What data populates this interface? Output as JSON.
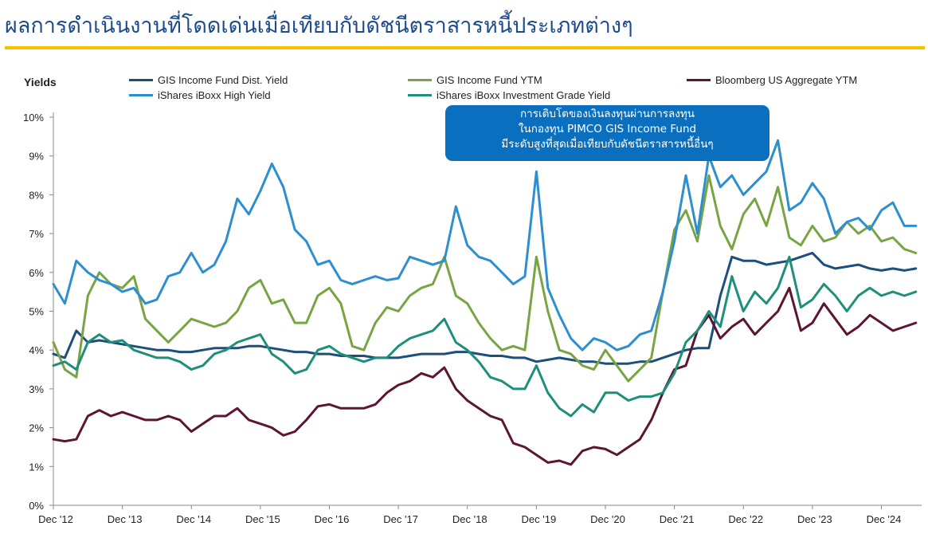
{
  "page": {
    "title": "ผลการดำเนินงานที่โดดเด่นเมื่อเทียบกับดัชนีตราสารหนี้ประเภทต่างๆ",
    "accent_color": "#f3c300",
    "title_color": "#1d4c8c"
  },
  "callout": {
    "lines": [
      "การเติบโตของเงินลงทุนผ่านการลงทุน",
      "ในกองทุน PIMCO GIS Income Fund",
      "มีระดับสูงที่สุดเมื่อเทียบกับดัชนีตราสารหนี้อื่นๆ"
    ],
    "color": "#0a6fbe"
  },
  "chart_data": {
    "type": "line",
    "ylabel": "Yields",
    "xlabel": "",
    "ylim": [
      0,
      10
    ],
    "y_ticks": [
      "0%",
      "1%",
      "2%",
      "3%",
      "4%",
      "5%",
      "6%",
      "7%",
      "8%",
      "9%",
      "10%"
    ],
    "x_ticks": [
      "Dec '12",
      "Dec '13",
      "Dec '14",
      "Dec '15",
      "Dec '16",
      "Dec '17",
      "Dec '18",
      "Dec '19",
      "Dec '20",
      "Dec '21",
      "Dec '22",
      "Dec '23",
      "Dec '24"
    ],
    "x_range": [
      2012.917,
      2025.5
    ],
    "grid": false,
    "legend_position": "top",
    "x": [
      2012.917,
      2013.083,
      2013.25,
      2013.417,
      2013.583,
      2013.75,
      2013.917,
      2014.083,
      2014.25,
      2014.417,
      2014.583,
      2014.75,
      2014.917,
      2015.083,
      2015.25,
      2015.417,
      2015.583,
      2015.75,
      2015.917,
      2016.083,
      2016.25,
      2016.417,
      2016.583,
      2016.75,
      2016.917,
      2017.083,
      2017.25,
      2017.417,
      2017.583,
      2017.75,
      2017.917,
      2018.083,
      2018.25,
      2018.417,
      2018.583,
      2018.75,
      2018.917,
      2019.083,
      2019.25,
      2019.417,
      2019.583,
      2019.75,
      2019.917,
      2020.083,
      2020.25,
      2020.417,
      2020.583,
      2020.75,
      2020.917,
      2021.083,
      2021.25,
      2021.417,
      2021.583,
      2021.75,
      2021.917,
      2022.083,
      2022.25,
      2022.417,
      2022.583,
      2022.75,
      2022.917,
      2023.083,
      2023.25,
      2023.417,
      2023.583,
      2023.75,
      2023.917,
      2024.083,
      2024.25,
      2024.417,
      2024.583,
      2024.75,
      2024.917,
      2025.083,
      2025.25,
      2025.417
    ],
    "series": [
      {
        "name": "GIS Income Fund Dist. Yield",
        "color": "#1d4f7c",
        "values": [
          3.9,
          3.8,
          4.5,
          4.2,
          4.25,
          4.2,
          4.15,
          4.1,
          4.05,
          4.0,
          4.0,
          3.95,
          3.95,
          4.0,
          4.05,
          4.05,
          4.05,
          4.1,
          4.1,
          4.05,
          4.0,
          3.95,
          3.95,
          3.9,
          3.9,
          3.85,
          3.85,
          3.85,
          3.8,
          3.8,
          3.8,
          3.85,
          3.9,
          3.9,
          3.9,
          3.95,
          3.95,
          3.9,
          3.85,
          3.85,
          3.8,
          3.8,
          3.7,
          3.75,
          3.8,
          3.75,
          3.7,
          3.7,
          3.65,
          3.65,
          3.65,
          3.7,
          3.7,
          3.8,
          3.9,
          4.0,
          4.05,
          4.05,
          5.4,
          6.4,
          6.3,
          6.3,
          6.2,
          6.25,
          6.3,
          6.4,
          6.5,
          6.2,
          6.1,
          6.15,
          6.2,
          6.1,
          6.05,
          6.1,
          6.05,
          6.1
        ]
      },
      {
        "name": "GIS Income Fund YTM",
        "color": "#79a443",
        "values": [
          4.2,
          3.5,
          3.3,
          5.4,
          6.0,
          5.7,
          5.6,
          5.9,
          4.8,
          4.5,
          4.2,
          4.5,
          4.8,
          4.7,
          4.6,
          4.7,
          5.0,
          5.6,
          5.8,
          5.2,
          5.3,
          4.7,
          4.7,
          5.4,
          5.6,
          5.2,
          4.1,
          4.0,
          4.7,
          5.1,
          5.0,
          5.4,
          5.6,
          5.7,
          6.4,
          5.4,
          5.2,
          4.7,
          4.3,
          4.0,
          4.1,
          4.0,
          6.4,
          5.0,
          4.0,
          3.9,
          3.6,
          3.5,
          4.0,
          3.6,
          3.2,
          3.5,
          3.8,
          5.5,
          7.1,
          7.6,
          6.8,
          8.5,
          7.2,
          6.6,
          7.5,
          7.9,
          7.2,
          8.2,
          6.9,
          6.7,
          7.2,
          6.8,
          6.9,
          7.3,
          7.0,
          7.2,
          6.8,
          6.9,
          6.6,
          6.5
        ]
      },
      {
        "name": "Bloomberg US Aggregate YTM",
        "color": "#5c1535",
        "values": [
          1.7,
          1.65,
          1.7,
          2.3,
          2.45,
          2.3,
          2.4,
          2.3,
          2.2,
          2.2,
          2.3,
          2.2,
          1.9,
          2.1,
          2.3,
          2.3,
          2.5,
          2.2,
          2.1,
          2.0,
          1.8,
          1.9,
          2.2,
          2.55,
          2.6,
          2.5,
          2.5,
          2.5,
          2.6,
          2.9,
          3.1,
          3.2,
          3.4,
          3.3,
          3.55,
          3.0,
          2.7,
          2.5,
          2.3,
          2.2,
          1.6,
          1.5,
          1.3,
          1.1,
          1.15,
          1.05,
          1.4,
          1.5,
          1.45,
          1.3,
          1.5,
          1.7,
          2.2,
          2.9,
          3.5,
          3.6,
          4.5,
          4.9,
          4.3,
          4.6,
          4.8,
          4.4,
          4.7,
          5.0,
          5.6,
          4.5,
          4.7,
          5.2,
          4.8,
          4.4,
          4.6,
          4.9,
          4.7,
          4.5,
          4.6,
          4.7
        ]
      },
      {
        "name": "iShares iBoxx High Yield",
        "color": "#2d8fcf",
        "values": [
          5.7,
          5.2,
          6.3,
          6.0,
          5.8,
          5.7,
          5.5,
          5.6,
          5.2,
          5.3,
          5.9,
          6.0,
          6.5,
          6.0,
          6.2,
          6.8,
          7.9,
          7.5,
          8.1,
          8.8,
          8.2,
          7.1,
          6.8,
          6.2,
          6.3,
          5.8,
          5.7,
          5.8,
          5.9,
          5.8,
          5.85,
          6.4,
          6.3,
          6.2,
          6.3,
          7.7,
          6.7,
          6.4,
          6.3,
          6.0,
          5.7,
          5.9,
          8.6,
          5.6,
          4.9,
          4.3,
          4.0,
          4.3,
          4.2,
          4.0,
          4.1,
          4.4,
          4.5,
          5.5,
          6.8,
          8.5,
          7.0,
          9.0,
          8.2,
          8.5,
          8.0,
          8.3,
          8.6,
          9.4,
          7.6,
          7.8,
          8.3,
          7.9,
          7.0,
          7.3,
          7.4,
          7.1,
          7.6,
          7.8,
          7.2,
          7.2
        ]
      },
      {
        "name": "iShares iBoxx Investment Grade Yield",
        "color": "#1f8f7c",
        "values": [
          3.6,
          3.7,
          3.5,
          4.2,
          4.4,
          4.2,
          4.25,
          4.0,
          3.9,
          3.8,
          3.8,
          3.7,
          3.5,
          3.6,
          3.9,
          4.0,
          4.2,
          4.3,
          4.4,
          3.9,
          3.7,
          3.4,
          3.5,
          4.0,
          4.1,
          3.9,
          3.8,
          3.7,
          3.8,
          3.8,
          4.1,
          4.3,
          4.4,
          4.5,
          4.8,
          4.2,
          4.0,
          3.7,
          3.3,
          3.2,
          3.0,
          3.0,
          3.6,
          2.9,
          2.5,
          2.3,
          2.6,
          2.4,
          2.9,
          2.9,
          2.7,
          2.8,
          2.8,
          2.9,
          3.4,
          4.2,
          4.5,
          5.0,
          4.6,
          5.9,
          5.0,
          5.5,
          5.2,
          5.6,
          6.4,
          5.1,
          5.3,
          5.7,
          5.4,
          5.0,
          5.4,
          5.6,
          5.4,
          5.5,
          5.4,
          5.5
        ]
      }
    ]
  }
}
